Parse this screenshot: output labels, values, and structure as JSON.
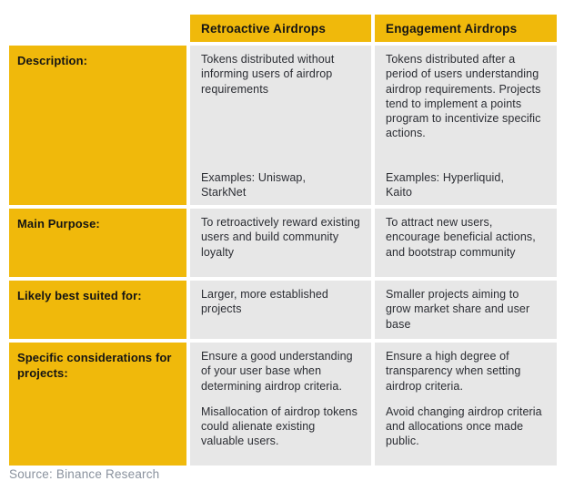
{
  "table": {
    "header": {
      "retroactive": "Retroactive Airdrops",
      "engagement": "Engagement Airdrops"
    },
    "rows": [
      {
        "label": "Description:",
        "retroactive": {
          "body": "Tokens distributed without informing users of airdrop requirements",
          "examples": "Examples: Uniswap, StarkNet"
        },
        "engagement": {
          "body": "Tokens distributed after a period of users understanding airdrop requirements. Projects tend to implement a points program to incentivize specific actions.",
          "examples": "Examples: Hyperliquid, Kaito"
        }
      },
      {
        "label": "Main Purpose:",
        "retroactive": {
          "body": "To retroactively reward existing users and build community loyalty"
        },
        "engagement": {
          "body": "To attract new users, encourage beneficial actions, and bootstrap community"
        }
      },
      {
        "label": "Likely best suited for:",
        "retroactive": {
          "body": "Larger, more established projects"
        },
        "engagement": {
          "body": "Smaller projects aiming to grow market share and user base"
        }
      },
      {
        "label": "Specific considerations for projects:",
        "retroactive": {
          "body": "Ensure a good understanding of your user base when determining airdrop criteria.",
          "body2": "Misallocation of airdrop tokens could alienate existing valuable users."
        },
        "engagement": {
          "body": "Ensure a high degree of transparency when setting airdrop criteria.",
          "body2": "Avoid changing airdrop criteria and allocations once made public."
        }
      }
    ]
  },
  "source": "Source: Binance Research",
  "colors": {
    "gold": "#F0B90B",
    "cell_gray": "#E7E7E7",
    "text_dark": "#2B2D33",
    "source_gray": "#8A929E"
  }
}
